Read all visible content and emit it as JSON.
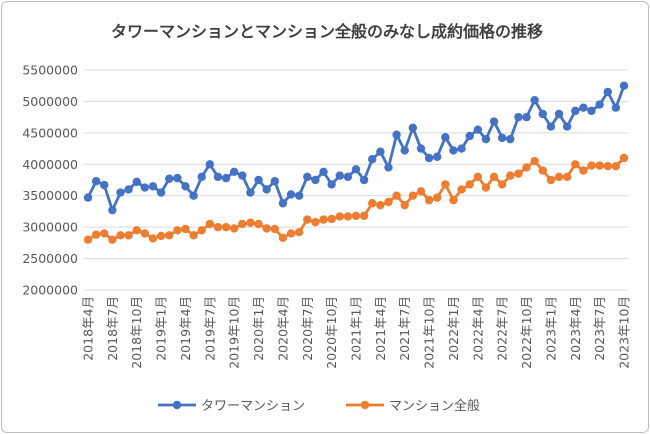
{
  "chart_data": {
    "type": "line",
    "title": "タワーマンションとマンション全般のみなし成約価格の推移",
    "xlabel": "",
    "ylabel": "",
    "ylim": [
      2000000,
      5500000
    ],
    "yticks": [
      2000000,
      2500000,
      3000000,
      3500000,
      4000000,
      4500000,
      5000000,
      5500000
    ],
    "ytick_labels": [
      "2000000",
      "2500000",
      "3000000",
      "3500000",
      "4000000",
      "4500000",
      "5000000",
      "5500000"
    ],
    "x_tick_labels": [
      "2018年4月",
      "2018年7月",
      "2018年10月",
      "2019年1月",
      "2019年4月",
      "2019年7月",
      "2019年10月",
      "2020年1月",
      "2020年4月",
      "2020年7月",
      "2020年10月",
      "2021年1月",
      "2021年4月",
      "2021年7月",
      "2021年10月",
      "2022年1月",
      "2022年4月",
      "2022年7月",
      "2022年10月",
      "2023年1月",
      "2023年4月",
      "2023年7月",
      "2023年10月"
    ],
    "x_start": "2018-04",
    "x_end": "2023-10",
    "grid": "horizontal",
    "legend": "bottom",
    "series": [
      {
        "name": "タワーマンション",
        "color": "#4472C4",
        "values": [
          3470000,
          3730000,
          3670000,
          3270000,
          3550000,
          3600000,
          3720000,
          3630000,
          3650000,
          3550000,
          3770000,
          3780000,
          3650000,
          3500000,
          3800000,
          4000000,
          3800000,
          3780000,
          3880000,
          3820000,
          3550000,
          3750000,
          3600000,
          3730000,
          3380000,
          3520000,
          3500000,
          3800000,
          3750000,
          3880000,
          3680000,
          3820000,
          3800000,
          3920000,
          3750000,
          4080000,
          4200000,
          3950000,
          4470000,
          4220000,
          4580000,
          4250000,
          4100000,
          4120000,
          4430000,
          4220000,
          4250000,
          4450000,
          4550000,
          4400000,
          4680000,
          4420000,
          4400000,
          4750000,
          4750000,
          5020000,
          4800000,
          4600000,
          4800000,
          4600000,
          4850000,
          4900000,
          4850000,
          4950000,
          5150000,
          4900000,
          5250000
        ]
      },
      {
        "name": "マンション全般",
        "color": "#ED7D31",
        "values": [
          2800000,
          2880000,
          2900000,
          2800000,
          2870000,
          2870000,
          2950000,
          2900000,
          2820000,
          2860000,
          2870000,
          2950000,
          2970000,
          2870000,
          2950000,
          3050000,
          3000000,
          3000000,
          2980000,
          3050000,
          3070000,
          3050000,
          2980000,
          2970000,
          2830000,
          2900000,
          2920000,
          3120000,
          3080000,
          3120000,
          3130000,
          3170000,
          3170000,
          3180000,
          3180000,
          3380000,
          3350000,
          3400000,
          3500000,
          3350000,
          3500000,
          3570000,
          3430000,
          3470000,
          3680000,
          3430000,
          3600000,
          3680000,
          3800000,
          3630000,
          3800000,
          3680000,
          3820000,
          3850000,
          3950000,
          4050000,
          3900000,
          3750000,
          3800000,
          3800000,
          4000000,
          3900000,
          3980000,
          3980000,
          3970000,
          3970000,
          4100000
        ]
      }
    ]
  }
}
